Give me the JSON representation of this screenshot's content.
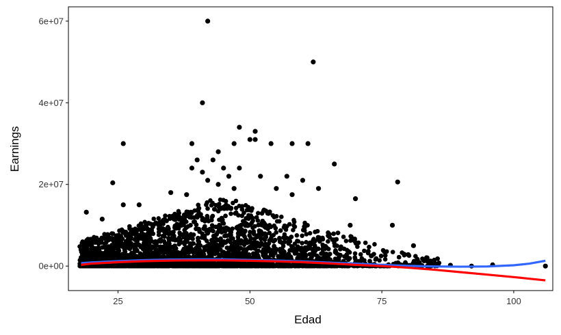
{
  "chart_data": {
    "type": "scatter",
    "title": "",
    "xlabel": "Edad",
    "ylabel": "Earnings",
    "xlim": [
      15.6,
      107.4
    ],
    "ylim": [
      -6000000,
      63500000
    ],
    "x_ticks": [
      25,
      50,
      75,
      100
    ],
    "x_tick_labels": [
      "25",
      "50",
      "75",
      "100"
    ],
    "y_ticks": [
      0,
      20000000,
      40000000,
      60000000
    ],
    "y_tick_labels": [
      "0e+00",
      "2e+07",
      "4e+07",
      "6e+07"
    ],
    "grid": false,
    "legend": "none",
    "series": [
      {
        "type": "scatter",
        "color": "#000000",
        "points": [
          [
            42,
            60000000
          ],
          [
            62,
            50000000
          ],
          [
            41,
            40000000
          ],
          [
            48,
            34000000
          ],
          [
            51,
            33000000
          ],
          [
            50,
            31000000
          ],
          [
            51,
            31000000
          ],
          [
            26,
            30000000
          ],
          [
            39,
            30000000
          ],
          [
            47,
            30000000
          ],
          [
            54,
            30000000
          ],
          [
            58,
            30000000
          ],
          [
            61,
            30000000
          ],
          [
            44,
            28000000
          ],
          [
            40,
            26000000
          ],
          [
            43,
            26000000
          ],
          [
            45,
            24000000
          ],
          [
            48,
            24000000
          ],
          [
            39,
            24000000
          ],
          [
            66,
            25000000
          ],
          [
            41,
            23000000
          ],
          [
            46,
            22000000
          ],
          [
            52,
            22000000
          ],
          [
            57,
            22000000
          ],
          [
            60,
            21000000
          ],
          [
            78,
            20600000
          ],
          [
            24,
            20400000
          ],
          [
            42,
            21000000
          ],
          [
            44,
            20000000
          ],
          [
            47,
            19000000
          ],
          [
            55,
            19000000
          ],
          [
            63,
            19000000
          ],
          [
            35,
            18000000
          ],
          [
            38,
            17500000
          ],
          [
            58,
            17500000
          ],
          [
            70,
            16500000
          ],
          [
            26,
            15000000
          ],
          [
            29,
            15000000
          ],
          [
            19,
            13200000
          ],
          [
            22,
            11500000
          ],
          [
            77,
            10000000
          ],
          [
            81,
            5000000
          ],
          [
            69,
            10000000
          ],
          [
            73,
            2500000
          ],
          [
            106,
            0
          ],
          [
            96,
            300000
          ],
          [
            88,
            200000
          ],
          [
            92,
            0
          ],
          [
            85,
            700000
          ],
          [
            83,
            1300000
          ],
          [
            80,
            2800000
          ]
        ],
        "cloud": {
          "x_range": [
            18,
            86
          ],
          "y_range": [
            0,
            17000000
          ],
          "point_count": 4000
        }
      },
      {
        "type": "line",
        "color": "#3366ff",
        "x": [
          18,
          20,
          25,
          30,
          35,
          40,
          45,
          50,
          55,
          60,
          65,
          70,
          75,
          80,
          85,
          90,
          95,
          100,
          103,
          106
        ],
        "y": [
          700000,
          900000,
          1200000,
          1450000,
          1600000,
          1650000,
          1650000,
          1500000,
          1350000,
          1150000,
          850000,
          600000,
          300000,
          50000,
          -100000,
          -150000,
          -100000,
          200000,
          600000,
          1300000
        ]
      },
      {
        "type": "line",
        "color": "#ff0000",
        "x": [
          18,
          20,
          25,
          30,
          35,
          40,
          45,
          50,
          55,
          60,
          65,
          70,
          75,
          80,
          85,
          90,
          95,
          100,
          103,
          106
        ],
        "y": [
          300000,
          600000,
          950000,
          1200000,
          1350000,
          1400000,
          1400000,
          1300000,
          1150000,
          950000,
          650000,
          300000,
          0,
          -400000,
          -900000,
          -1500000,
          -2100000,
          -2700000,
          -3100000,
          -3500000
        ]
      }
    ]
  }
}
